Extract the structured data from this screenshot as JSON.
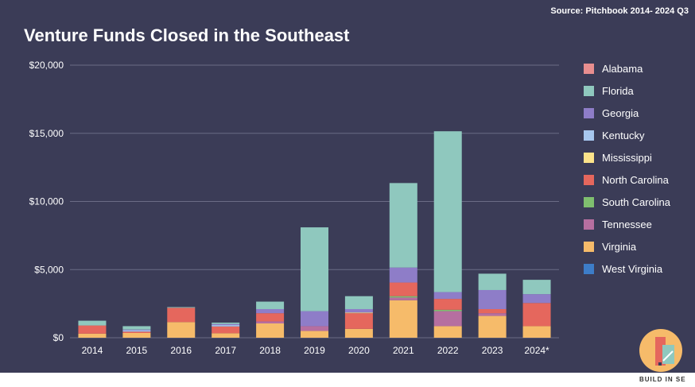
{
  "source": "Source: Pitchbook 2014- 2024 Q3",
  "brand_name": "BUILD IN SE",
  "colors": {
    "background": "#3b3c57",
    "grid": "#6b6c85",
    "text": "#ffffff"
  },
  "chart_data": {
    "type": "bar",
    "stacked": true,
    "title": "Venture Funds Closed in the Southeast",
    "xlabel": "",
    "ylabel": "",
    "categories": [
      "2014",
      "2015",
      "2016",
      "2017",
      "2018",
      "2019",
      "2020",
      "2021",
      "2022",
      "2023",
      "2024*"
    ],
    "yticks": [
      "$0",
      "$5,000",
      "$10,000",
      "$15,000",
      "$20,000"
    ],
    "ylim": [
      0,
      20000
    ],
    "grid": true,
    "legend_position": "right",
    "series": [
      {
        "name": "Virginia",
        "color": "#f6bb6a",
        "values": [
          300,
          350,
          1150,
          330,
          1050,
          500,
          650,
          2750,
          850,
          1600,
          850
        ]
      },
      {
        "name": "Tennessee",
        "color": "#b66fa0",
        "values": [
          0,
          0,
          0,
          0,
          150,
          350,
          0,
          200,
          1100,
          200,
          0
        ]
      },
      {
        "name": "South Carolina",
        "color": "#7fbf6f",
        "values": [
          0,
          0,
          0,
          0,
          0,
          0,
          0,
          100,
          100,
          0,
          0
        ]
      },
      {
        "name": "North Carolina",
        "color": "#e5675d",
        "values": [
          600,
          100,
          1050,
          500,
          600,
          0,
          1150,
          1000,
          800,
          300,
          1700
        ]
      },
      {
        "name": "Mississippi",
        "color": "#fce38a",
        "values": [
          0,
          0,
          0,
          0,
          0,
          0,
          50,
          0,
          0,
          0,
          0
        ]
      },
      {
        "name": "Kentucky",
        "color": "#a7c7ef",
        "values": [
          0,
          100,
          0,
          100,
          0,
          0,
          0,
          0,
          0,
          0,
          0
        ]
      },
      {
        "name": "Georgia",
        "color": "#8e7dc8",
        "values": [
          0,
          50,
          0,
          80,
          300,
          1100,
          250,
          1100,
          500,
          1400,
          650
        ]
      },
      {
        "name": "Florida",
        "color": "#8fc8be",
        "values": [
          350,
          250,
          50,
          100,
          550,
          6150,
          950,
          6200,
          11800,
          1200,
          1050
        ]
      },
      {
        "name": "Alabama",
        "color": "#e88e8f",
        "values": [
          0,
          0,
          0,
          0,
          0,
          0,
          0,
          0,
          0,
          0,
          0
        ]
      },
      {
        "name": "West Virginia",
        "color": "#3d7dc8",
        "values": [
          0,
          0,
          0,
          0,
          0,
          0,
          0,
          0,
          0,
          0,
          0
        ]
      }
    ],
    "legend": [
      {
        "name": "Alabama",
        "color": "#e88e8f"
      },
      {
        "name": "Florida",
        "color": "#8fc8be"
      },
      {
        "name": "Georgia",
        "color": "#8e7dc8"
      },
      {
        "name": "Kentucky",
        "color": "#a7c7ef"
      },
      {
        "name": "Mississippi",
        "color": "#fce38a"
      },
      {
        "name": "North Carolina",
        "color": "#e5675d"
      },
      {
        "name": "South Carolina",
        "color": "#7fbf6f"
      },
      {
        "name": "Tennessee",
        "color": "#b66fa0"
      },
      {
        "name": "Virginia",
        "color": "#f6bb6a"
      },
      {
        "name": "West Virginia",
        "color": "#3d7dc8"
      }
    ]
  }
}
